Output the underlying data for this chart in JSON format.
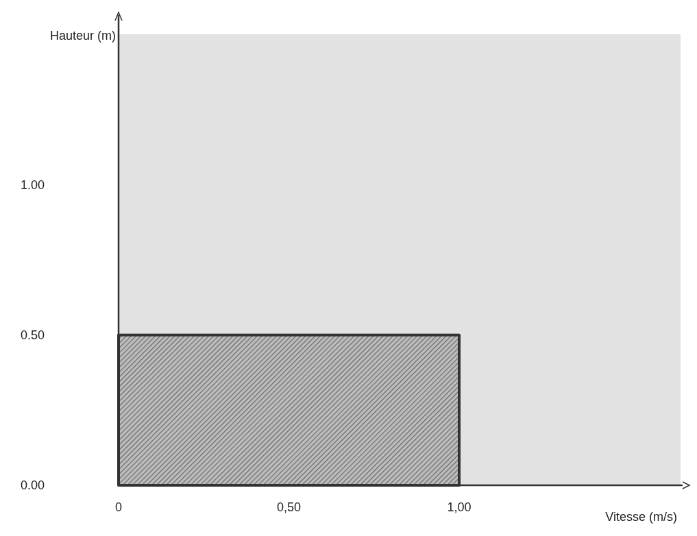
{
  "chart_data": {
    "type": "area",
    "xlabel": "Vitesse (m/s)",
    "ylabel": "Hauteur (m)",
    "xlim": [
      0,
      1.65
    ],
    "ylim": [
      0,
      1.5
    ],
    "xticks": [
      0,
      {
        "value": 0.5,
        "label": "0,50"
      },
      {
        "value": 1,
        "label": "1,00"
      }
    ],
    "yticks": [
      {
        "value": 0,
        "label": "0.00"
      },
      {
        "value": 0.5,
        "label": "0.50"
      },
      {
        "value": 1,
        "label": "1.00"
      }
    ],
    "bands": [
      {
        "axis": "y",
        "from": 0,
        "to": 1.5,
        "color": "#e2e2e2"
      }
    ],
    "series": [
      {
        "color": "#333333",
        "x": [
          0,
          1
        ],
        "values": [
          0.5,
          0.5
        ]
      }
    ]
  }
}
